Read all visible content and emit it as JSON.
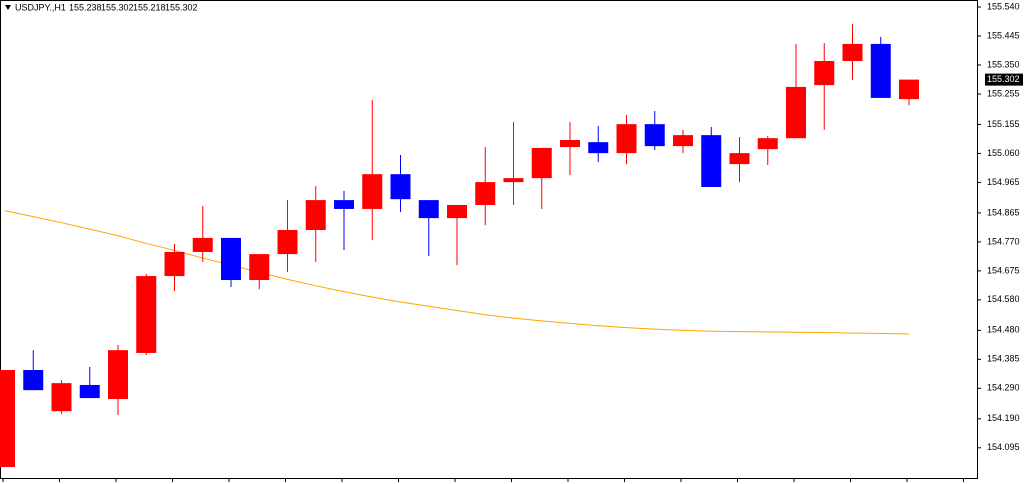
{
  "chart_data": {
    "type": "candlestick",
    "header": {
      "symbol": "USDJPY.,H1",
      "open": 155.238,
      "high": 155.302,
      "low": 155.218,
      "close": 155.302
    },
    "last_price": 155.302,
    "up_color": "#ff0000",
    "down_color": "#0000ff",
    "ohlc": {
      "open": [
        154.032,
        154.35,
        154.215,
        154.301,
        154.255,
        154.406,
        154.658,
        154.737,
        154.783,
        154.645,
        154.73,
        154.809,
        154.907,
        154.878,
        154.992,
        154.907,
        154.848,
        154.891,
        154.966,
        154.979,
        155.081,
        155.097,
        155.061,
        155.156,
        155.084,
        155.12,
        155.025,
        155.074,
        155.11,
        155.284,
        155.363,
        155.419,
        155.238
      ],
      "high": [
        154.35,
        154.415,
        154.317,
        154.36,
        154.432,
        154.665,
        154.763,
        154.888,
        154.783,
        154.73,
        154.907,
        154.953,
        154.937,
        155.235,
        155.055,
        154.907,
        154.891,
        155.081,
        155.163,
        155.078,
        155.163,
        155.15,
        155.186,
        155.199,
        155.137,
        155.147,
        155.114,
        155.117,
        155.419,
        155.422,
        155.484,
        155.442,
        155.302
      ],
      "low": [
        154.032,
        154.284,
        154.206,
        154.258,
        154.202,
        154.399,
        154.609,
        154.704,
        154.622,
        154.615,
        154.671,
        154.704,
        154.743,
        154.776,
        154.868,
        154.724,
        154.694,
        154.825,
        154.891,
        154.878,
        154.989,
        155.032,
        155.025,
        155.071,
        155.061,
        154.95,
        154.966,
        155.022,
        155.11,
        155.137,
        155.301,
        155.242,
        155.218
      ],
      "close": [
        154.35,
        154.284,
        154.307,
        154.258,
        154.415,
        154.658,
        154.737,
        154.783,
        154.645,
        154.73,
        154.809,
        154.907,
        154.878,
        154.992,
        154.91,
        154.848,
        154.891,
        154.966,
        154.979,
        155.078,
        155.104,
        155.061,
        155.156,
        155.084,
        155.12,
        154.95,
        155.061,
        155.11,
        155.278,
        155.363,
        155.419,
        155.242,
        155.302
      ]
    },
    "ma": {
      "color": "#ffa500",
      "values": [
        154.872,
        154.853,
        154.833,
        154.812,
        154.79,
        154.765,
        154.742,
        154.717,
        154.694,
        154.67,
        154.647,
        154.626,
        154.607,
        154.589,
        154.573,
        154.559,
        154.545,
        154.531,
        154.52,
        154.511,
        154.503,
        154.495,
        154.489,
        154.484,
        154.48,
        154.477,
        154.476,
        154.475,
        154.474,
        154.473,
        154.471,
        154.47,
        154.468
      ]
    },
    "ylim": [
      153.996,
      155.563
    ],
    "yticks": [
      {
        "value": 155.54,
        "label": "155.540"
      },
      155.445,
      {
        "value": 155.35,
        "label": "155.350"
      },
      155.255,
      155.155,
      {
        "value": 155.06,
        "label": "155.060"
      },
      154.965,
      154.865,
      {
        "value": 154.77,
        "label": "154.770"
      },
      154.675,
      {
        "value": 154.58,
        "label": "154.580"
      },
      {
        "value": 154.48,
        "label": "154.480"
      },
      154.385,
      {
        "value": 154.29,
        "label": "154.290"
      },
      {
        "value": 154.19,
        "label": "154.190"
      },
      154.095
    ]
  }
}
